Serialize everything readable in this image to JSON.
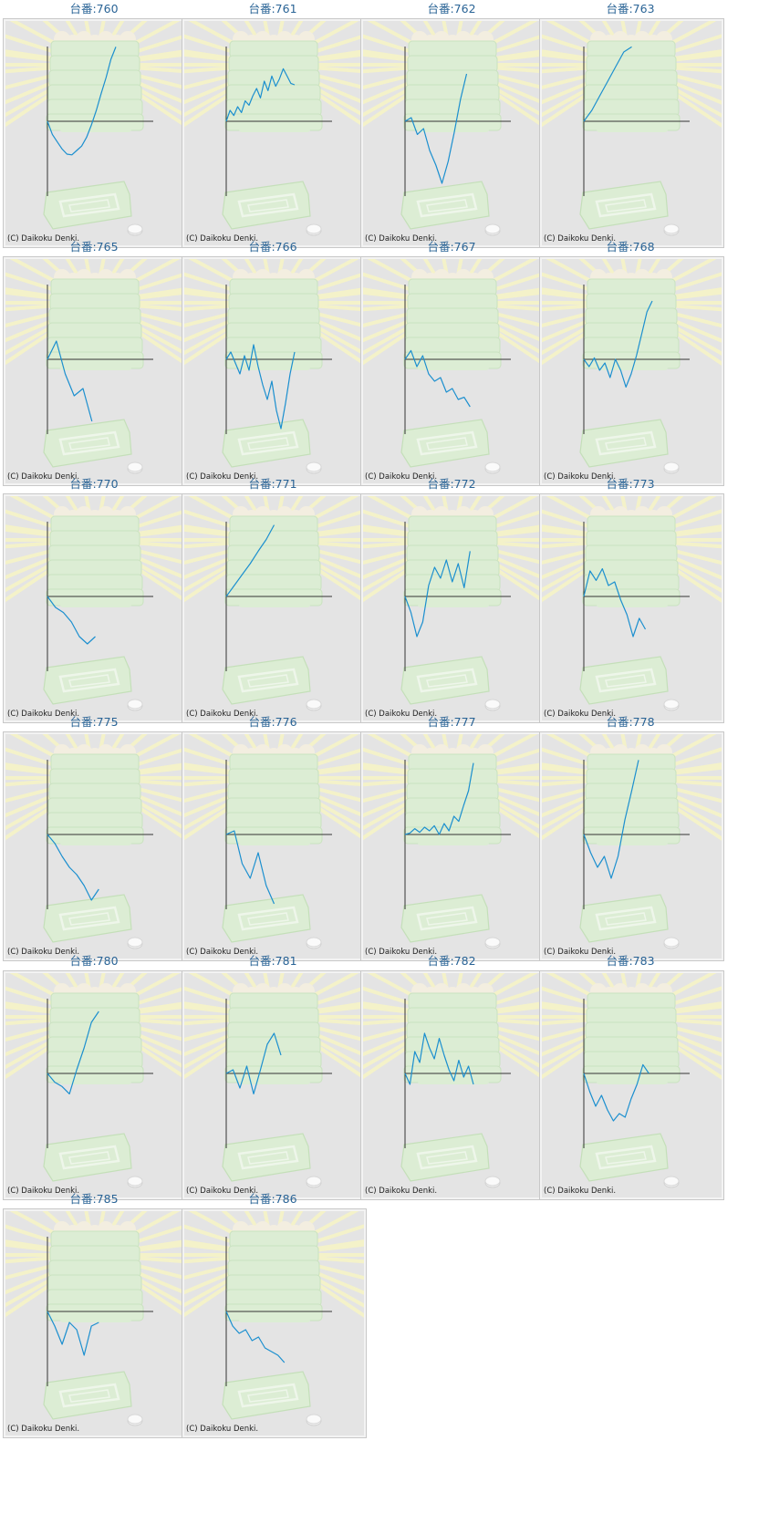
{
  "copyright": "(C) Daikoku Denki.",
  "line_color": "#1b8fcf",
  "chart_data": [
    {
      "type": "line",
      "title": "台番:760",
      "y": [
        0,
        -0.18,
        -0.28,
        -0.38,
        -0.45,
        -0.46,
        -0.4,
        -0.34,
        -0.22,
        -0.05,
        0.15,
        0.38,
        0.6,
        0.85,
        1.02
      ]
    },
    {
      "type": "line",
      "title": "台番:761",
      "y": [
        0,
        0.15,
        0.08,
        0.2,
        0.12,
        0.28,
        0.22,
        0.35,
        0.45,
        0.32,
        0.55,
        0.42,
        0.62,
        0.48,
        0.58,
        0.72,
        0.62,
        0.52,
        0.5
      ]
    },
    {
      "type": "line",
      "title": "台番:762",
      "y": [
        0,
        0.05,
        -0.18,
        -0.1,
        -0.4,
        -0.6,
        -0.85,
        -0.55,
        -0.15,
        0.3,
        0.65
      ]
    },
    {
      "type": "line",
      "title": "台番:763",
      "y": [
        0,
        0.15,
        0.35,
        0.55,
        0.75,
        0.95,
        1.02
      ]
    },
    {
      "type": "line",
      "title": "台番:765",
      "y": [
        0,
        0.25,
        -0.2,
        -0.5,
        -0.4,
        -0.85
      ]
    },
    {
      "type": "line",
      "title": "台番:766",
      "y": [
        0,
        0.1,
        -0.05,
        -0.2,
        0.05,
        -0.15,
        0.2,
        -0.1,
        -0.35,
        -0.55,
        -0.3,
        -0.7,
        -0.95,
        -0.6,
        -0.2,
        0.1
      ]
    },
    {
      "type": "line",
      "title": "台番:767",
      "y": [
        0,
        0.12,
        -0.1,
        0.05,
        -0.2,
        -0.3,
        -0.25,
        -0.45,
        -0.4,
        -0.55,
        -0.52,
        -0.65
      ]
    },
    {
      "type": "line",
      "title": "台番:768",
      "y": [
        0,
        -0.1,
        0.02,
        -0.15,
        -0.05,
        -0.25,
        0.0,
        -0.15,
        -0.38,
        -0.2,
        0.05,
        0.35,
        0.65,
        0.8
      ]
    },
    {
      "type": "line",
      "title": "台番:770",
      "y": [
        0,
        -0.15,
        -0.22,
        -0.35,
        -0.55,
        -0.65,
        -0.55
      ]
    },
    {
      "type": "line",
      "title": "台番:771",
      "y": [
        0,
        0.15,
        0.3,
        0.45,
        0.62,
        0.78,
        0.98
      ]
    },
    {
      "type": "line",
      "title": "台番:772",
      "y": [
        0,
        -0.22,
        -0.55,
        -0.35,
        0.15,
        0.4,
        0.25,
        0.5,
        0.2,
        0.45,
        0.12,
        0.62
      ]
    },
    {
      "type": "line",
      "title": "台番:773",
      "y": [
        0,
        0.35,
        0.22,
        0.38,
        0.15,
        0.2,
        -0.05,
        -0.25,
        -0.55,
        -0.3,
        -0.45
      ]
    },
    {
      "type": "line",
      "title": "台番:775",
      "y": [
        0,
        -0.12,
        -0.3,
        -0.45,
        -0.55,
        -0.7,
        -0.9,
        -0.75
      ]
    },
    {
      "type": "line",
      "title": "台番:776",
      "y": [
        0,
        0.05,
        -0.4,
        -0.6,
        -0.25,
        -0.7,
        -0.95
      ]
    },
    {
      "type": "line",
      "title": "台番:777",
      "y": [
        0,
        0.02,
        0.08,
        0.03,
        0.1,
        0.05,
        0.12,
        0.0,
        0.15,
        0.05,
        0.25,
        0.18,
        0.4,
        0.6,
        0.98
      ]
    },
    {
      "type": "line",
      "title": "台番:778",
      "y": [
        0,
        -0.25,
        -0.45,
        -0.3,
        -0.6,
        -0.3,
        0.2,
        0.6,
        1.02
      ]
    },
    {
      "type": "line",
      "title": "台番:780",
      "y": [
        0,
        -0.12,
        -0.18,
        -0.28,
        0.05,
        0.35,
        0.7,
        0.85
      ]
    },
    {
      "type": "line",
      "title": "台番:781",
      "y": [
        0,
        0.05,
        -0.2,
        0.1,
        -0.28,
        0.05,
        0.4,
        0.55,
        0.25
      ]
    },
    {
      "type": "line",
      "title": "台番:782",
      "y": [
        0,
        -0.15,
        0.3,
        0.15,
        0.55,
        0.35,
        0.2,
        0.48,
        0.25,
        0.05,
        -0.1,
        0.18,
        -0.05,
        0.1,
        -0.15
      ]
    },
    {
      "type": "line",
      "title": "台番:783",
      "y": [
        0,
        -0.25,
        -0.45,
        -0.3,
        -0.5,
        -0.65,
        -0.55,
        -0.6,
        -0.35,
        -0.15,
        0.12,
        0.0
      ]
    },
    {
      "type": "line",
      "title": "台番:785",
      "y": [
        0,
        -0.2,
        -0.45,
        -0.15,
        -0.25,
        -0.6,
        -0.2,
        -0.15
      ]
    },
    {
      "type": "line",
      "title": "台番:786",
      "y": [
        0,
        -0.2,
        -0.3,
        -0.25,
        -0.4,
        -0.35,
        -0.5,
        -0.55,
        -0.6,
        -0.7
      ]
    }
  ]
}
